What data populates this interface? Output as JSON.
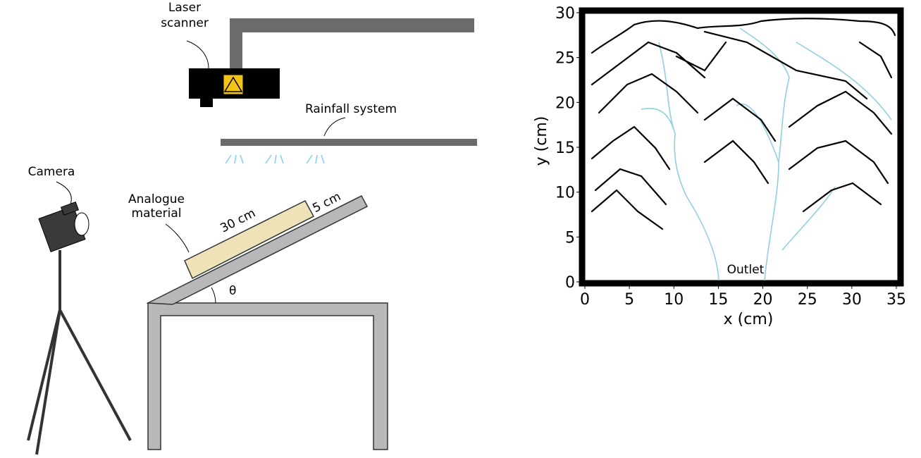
{
  "diagram": {
    "laser_scanner": [
      "Laser",
      "scanner"
    ],
    "rainfall_system": "Rainfall system",
    "camera": "Camera",
    "analogue_material": [
      "Analogue",
      "material"
    ],
    "length": "30 cm",
    "depth": "5 cm",
    "angle": "θ"
  },
  "plot": {
    "xlabel": "x (cm)",
    "ylabel": "y (cm)",
    "annotation": "Outlet",
    "xlim": [
      0,
      35
    ],
    "xticks": [
      0,
      5,
      10,
      15,
      20,
      25,
      30,
      35
    ],
    "ylim": [
      0,
      30
    ],
    "yticks": [
      0,
      5,
      10,
      15,
      20,
      25,
      30
    ]
  }
}
